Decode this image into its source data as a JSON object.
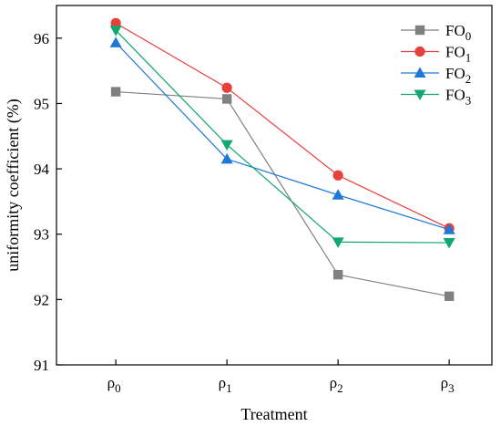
{
  "chart_data": {
    "type": "line",
    "xlabel": "Treatment",
    "ylabel": "uniformity coefficient (%)",
    "categories": [
      {
        "base": "ρ",
        "sub": "0"
      },
      {
        "base": "ρ",
        "sub": "1"
      },
      {
        "base": "ρ",
        "sub": "2"
      },
      {
        "base": "ρ",
        "sub": "3"
      }
    ],
    "ylim": [
      91,
      96.5
    ],
    "yticks": [
      91,
      92,
      93,
      94,
      95,
      96
    ],
    "grid": false,
    "legend_position": "top-right",
    "series": [
      {
        "name_base": "FO",
        "name_sub": "0",
        "color": "#808080",
        "marker": "square",
        "values": [
          95.18,
          95.07,
          92.38,
          92.05
        ]
      },
      {
        "name_base": "FO",
        "name_sub": "1",
        "color": "#e8413c",
        "marker": "circle",
        "values": [
          96.23,
          95.24,
          93.9,
          93.09
        ]
      },
      {
        "name_base": "FO",
        "name_sub": "2",
        "color": "#1f77d8",
        "marker": "triangle-up",
        "values": [
          95.93,
          94.15,
          93.6,
          93.07
        ]
      },
      {
        "name_base": "FO",
        "name_sub": "3",
        "color": "#10a86e",
        "marker": "triangle-down",
        "values": [
          96.12,
          94.37,
          92.88,
          92.87
        ]
      }
    ]
  }
}
